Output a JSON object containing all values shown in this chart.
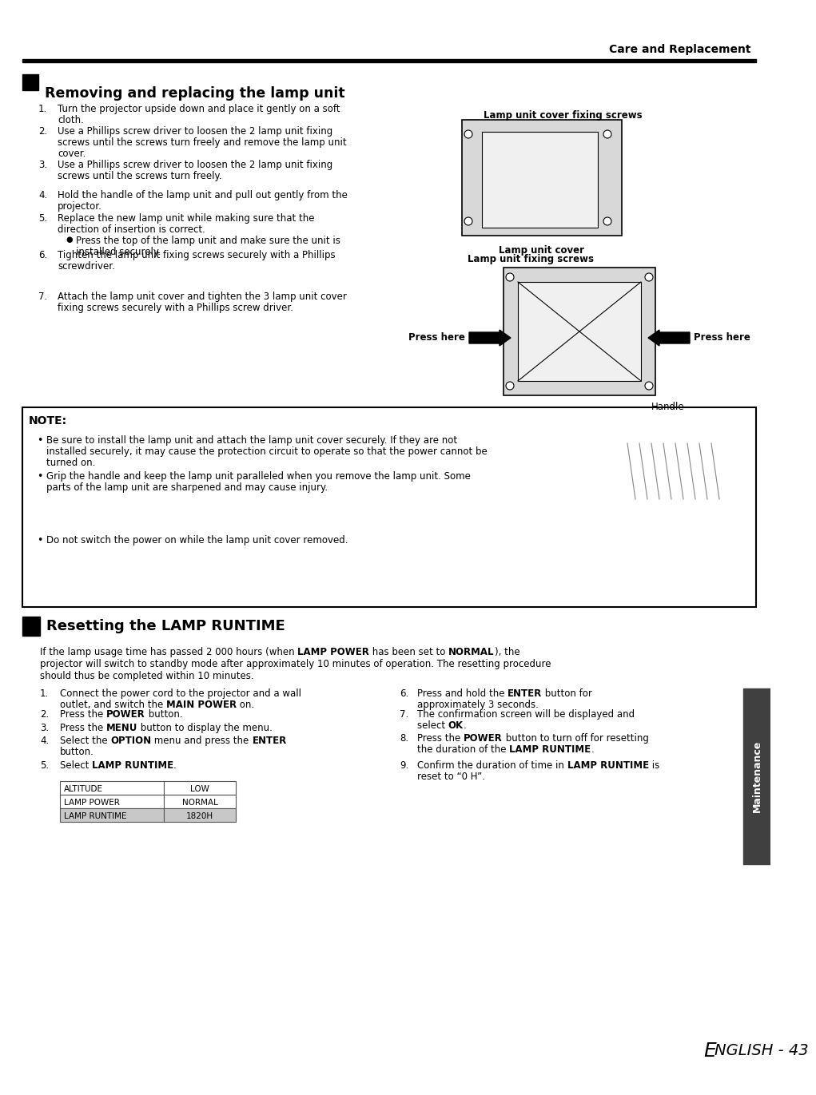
{
  "page_header": "Care and Replacement",
  "section1_title": "Removing and replacing the lamp unit",
  "section1_items": [
    "Turn the projector upside down and place it gently on a soft\ncloth.",
    "Use a Phillips screw driver to loosen the 2 lamp unit fixing\nscrews until the screws turn freely and remove the lamp unit\ncover.",
    "Use a Phillips screw driver to loosen the 2 lamp unit fixing\nscrews until the screws turn freely.",
    "Hold the handle of the lamp unit and pull out gently from the\nprojector.",
    "Replace the new lamp unit while making sure that the\ndirection of insertion is correct.",
    "Tighten the lamp unit fixing screws securely with a Phillips\nscrewdriver.",
    "Attach the lamp unit cover and tighten the 3 lamp unit cover\nfixing screws securely with a Phillips screw driver."
  ],
  "section1_bullet": "Press the top of the lamp unit and make sure the unit is\ninstalled securely.",
  "lamp_cover_label": "Lamp unit cover fixing screws",
  "lamp_cover2_label": "Lamp unit cover",
  "lamp_fixing_label": "Lamp unit fixing screws",
  "press_here_left": "Press here",
  "press_here_right": "Press here",
  "handle_label": "Handle",
  "note_title": "NOTE:",
  "note_items": [
    "Be sure to install the lamp unit and attach the lamp unit cover securely. If they are not\ninstalled securely, it may cause the protection circuit to operate so that the power cannot be\nturned on.",
    "Grip the handle and keep the lamp unit paralleled when you remove the lamp unit. Some\nparts of the lamp unit are sharpened and may cause injury.",
    "Do not switch the power on while the lamp unit cover removed."
  ],
  "section2_title": "Resetting the LAMP RUNTIME",
  "section2_intro_parts": [
    [
      "If the lamp usage time has passed 2 000 hours (when ",
      "LAMP POWER",
      " has been set to ",
      "NORMAL",
      "), the"
    ],
    [
      "projector will switch to standby mode after approximately 10 minutes of operation. The resetting procedure"
    ],
    [
      "should thus be completed within 10 minutes."
    ]
  ],
  "section2_left": [
    [
      [
        "Connect the power cord to the projector and a wall"
      ],
      [
        "outlet, and switch the ",
        "MAIN POWER",
        " on."
      ]
    ],
    [
      [
        "Press the ",
        "POWER",
        " button."
      ]
    ],
    [
      [
        "Press the ",
        "MENU",
        " button to display the menu."
      ]
    ],
    [
      [
        "Select the ",
        "OPTION",
        " menu and press the ",
        "ENTER"
      ],
      [
        "button."
      ]
    ],
    [
      [
        "Select ",
        "LAMP RUNTIME",
        "."
      ]
    ]
  ],
  "section2_right": [
    [
      [
        "Press and hold the ",
        "ENTER",
        " button for"
      ],
      [
        "approximately 3 seconds."
      ]
    ],
    [
      [
        "The confirmation screen will be displayed and"
      ],
      [
        "select ",
        "OK",
        "."
      ]
    ],
    [
      [
        "Press the ",
        "POWER",
        " button to turn off for resetting"
      ],
      [
        "the duration of the ",
        "LAMP RUNTIME",
        "."
      ]
    ],
    [
      [
        "Confirm the duration of time in ",
        "LAMP RUNTIME",
        " is"
      ],
      [
        "reset to “0 H”."
      ]
    ]
  ],
  "table_rows": [
    [
      "ALTITUDE",
      "LOW",
      false
    ],
    [
      "LAMP POWER",
      "NORMAL",
      false
    ],
    [
      "LAMP RUNTIME",
      "1820H",
      true
    ]
  ],
  "sidebar_text": "Maintenance",
  "sidebar_color": "#404040",
  "footer_E": "E",
  "footer_rest": "NGLISH - 43",
  "bg_color": "#ffffff",
  "text_color": "#000000"
}
